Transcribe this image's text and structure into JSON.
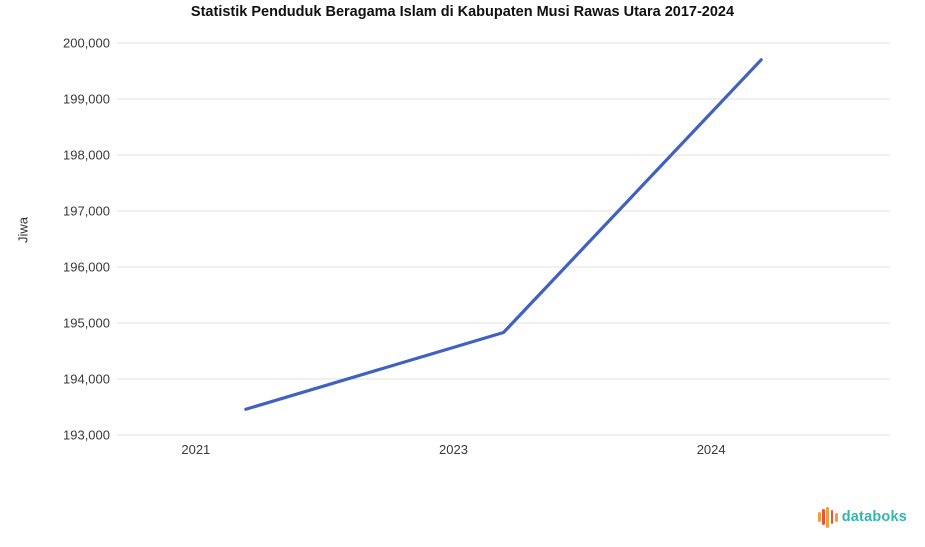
{
  "page": {
    "background_color": "#ffffff"
  },
  "chart_data": {
    "type": "line",
    "title": "Statistik Penduduk Beragama Islam di Kabupaten Musi Rawas Utara 2017-2024",
    "ylabel": "Jiwa",
    "xlabel": "",
    "categories": [
      "2021",
      "2023",
      "2024"
    ],
    "values": [
      193460,
      194830,
      199700
    ],
    "ylim": [
      193000,
      200000
    ],
    "ytick_step": 1000,
    "ytick_labels": [
      "200,000",
      "199,000",
      "198,000",
      "197,000",
      "196,000",
      "195,000",
      "194,000",
      "193,000"
    ],
    "grid": "horizontal-only",
    "legend": "none",
    "line_color": "#4160c4",
    "gridline_color": "#e0e0e0"
  },
  "branding": {
    "logo_text": "databoks",
    "logo_text_color": "#35b5ac",
    "logo_bar_colors": [
      "#f59d3d",
      "#e8533b",
      "#f59d3d",
      "#e8533b",
      "#f59d3d"
    ],
    "logo_bar_heights": [
      10,
      16,
      21,
      14,
      9
    ]
  }
}
